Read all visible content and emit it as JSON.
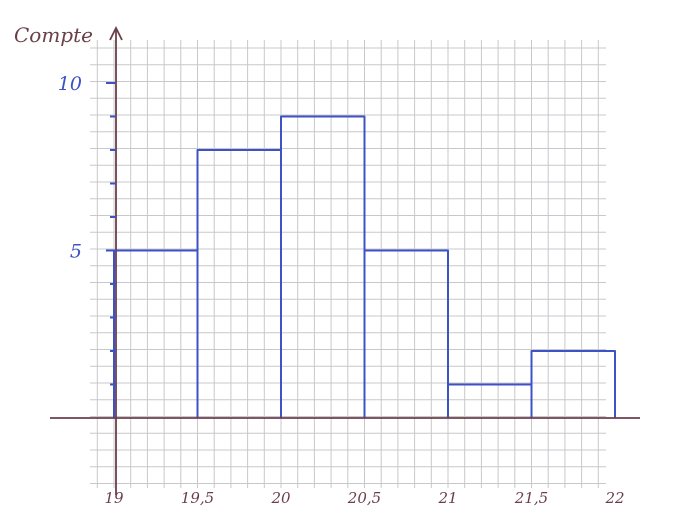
{
  "chart_data": {
    "type": "bar",
    "title": "",
    "xlabel": "",
    "ylabel": "Compte",
    "bin_edges": [
      19,
      19.5,
      20,
      20.5,
      21,
      21.5,
      22
    ],
    "values": [
      5,
      8,
      9,
      5,
      1,
      2
    ],
    "x_tick_labels": [
      "19",
      "19,5",
      "20",
      "20,5",
      "21",
      "21,5",
      "22"
    ],
    "y_tick_labels": [
      "5",
      "10"
    ],
    "y_tick_values": [
      5,
      10
    ],
    "xlim": [
      19,
      22
    ],
    "ylim": [
      -2,
      11
    ],
    "grid": true,
    "colors": {
      "bars": "#3d52c4",
      "axes": "#6b3f4a",
      "grid": "#c8c8cc"
    }
  }
}
